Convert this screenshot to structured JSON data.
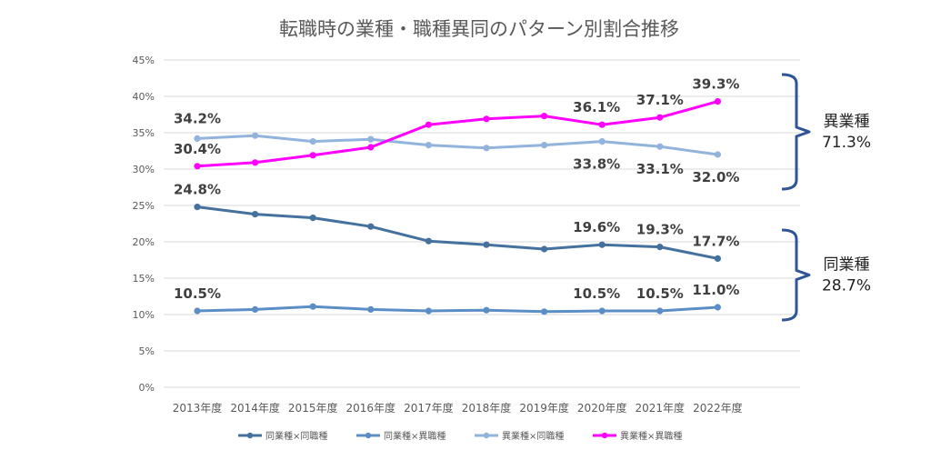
{
  "chart_data": {
    "type": "line",
    "title": "転職時の業種・職種異同のパターン別割合推移",
    "categories": [
      "2013年度",
      "2014年度",
      "2015年度",
      "2016年度",
      "2017年度",
      "2018年度",
      "2019年度",
      "2020年度",
      "2021年度",
      "2022年度"
    ],
    "y_ticks": [
      "0%",
      "5%",
      "10%",
      "15%",
      "20%",
      "25%",
      "30%",
      "35%",
      "40%",
      "45%"
    ],
    "ylim": [
      0,
      45
    ],
    "grid": true,
    "legend_position": "bottom",
    "series": [
      {
        "name": "同業種×同職種",
        "color": "#44719d",
        "values": [
          24.8,
          23.8,
          23.3,
          22.1,
          20.1,
          19.6,
          19.0,
          19.6,
          19.3,
          17.7
        ],
        "labels": [
          {
            "index": 0,
            "text": "24.8%"
          },
          {
            "index": 7,
            "text": "19.6%"
          },
          {
            "index": 8,
            "text": "19.3%"
          },
          {
            "index": 9,
            "text": "17.7%"
          }
        ]
      },
      {
        "name": "同業種×異職種",
        "color": "#5b8ec5",
        "values": [
          10.5,
          10.7,
          11.1,
          10.7,
          10.5,
          10.6,
          10.4,
          10.5,
          10.5,
          11.0
        ],
        "labels": [
          {
            "index": 0,
            "text": "10.5%"
          },
          {
            "index": 7,
            "text": "10.5%"
          },
          {
            "index": 8,
            "text": "10.5%"
          },
          {
            "index": 9,
            "text": "11.0%"
          }
        ]
      },
      {
        "name": "異業種×同職種",
        "color": "#92b4dc",
        "values": [
          34.2,
          34.6,
          33.8,
          34.1,
          33.3,
          32.9,
          33.3,
          33.8,
          33.1,
          32.0
        ],
        "labels": [
          {
            "index": 0,
            "text": "34.2%"
          },
          {
            "index": 7,
            "text": "33.8%"
          },
          {
            "index": 8,
            "text": "33.1%"
          },
          {
            "index": 9,
            "text": "32.0%"
          }
        ]
      },
      {
        "name": "異業種×異職種",
        "color": "#ff00ff",
        "values": [
          30.4,
          30.9,
          31.9,
          33.0,
          36.1,
          36.9,
          37.3,
          36.1,
          37.1,
          39.3
        ],
        "labels": [
          {
            "index": 0,
            "text": "30.4%"
          },
          {
            "index": 7,
            "text": "36.1%"
          },
          {
            "index": 8,
            "text": "37.1%"
          },
          {
            "index": 9,
            "text": "39.3%"
          }
        ]
      }
    ],
    "annotations": [
      {
        "label": "異業種",
        "value": "71.3%",
        "y_from": 32.0,
        "y_to": 39.3
      },
      {
        "label": "同業種",
        "value": "28.7%",
        "y_from": 11.0,
        "y_to": 17.7
      }
    ]
  }
}
